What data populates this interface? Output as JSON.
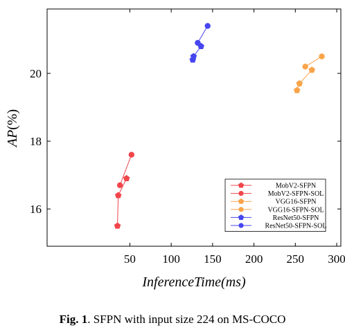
{
  "chart_data": {
    "type": "line",
    "xlabel": "InferenceTime(ms)",
    "ylabel_italic": "AP",
    "ylabel_unit": "(%)",
    "xlim": [
      -50,
      305
    ],
    "ylim": [
      14.9,
      21.9
    ],
    "xticks": [
      50,
      100,
      150,
      200,
      250,
      300
    ],
    "yticks": [
      16,
      18,
      20
    ],
    "grid": false,
    "legend_position": "bottom-right",
    "series": [
      {
        "name": "MobV2-SFPN",
        "color": "#f0464b",
        "marker": "pentagon",
        "points": [
          [
            35,
            15.5
          ],
          [
            36,
            16.4
          ],
          [
            46,
            16.9
          ]
        ]
      },
      {
        "name": "MobV2-SFPN-SOL",
        "color": "#f0464b",
        "marker": "circle",
        "points": [
          [
            38,
            16.7
          ],
          [
            52,
            17.6
          ]
        ]
      },
      {
        "name": "VGG16-SFPN",
        "color": "#f9a44a",
        "marker": "pentagon",
        "points": [
          [
            252,
            19.5
          ],
          [
            255,
            19.7
          ],
          [
            270,
            20.1
          ]
        ]
      },
      {
        "name": "VGG16-SFPN-SOL",
        "color": "#f9a44a",
        "marker": "circle",
        "points": [
          [
            262,
            20.2
          ],
          [
            282,
            20.5
          ]
        ]
      },
      {
        "name": "ResNet50-SFPN",
        "color": "#4646f0",
        "marker": "pentagon",
        "points": [
          [
            126,
            20.4
          ],
          [
            127,
            20.5
          ],
          [
            136,
            20.8
          ]
        ]
      },
      {
        "name": "ResNet50-SFPN-SOL",
        "color": "#4646f0",
        "marker": "circle",
        "points": [
          [
            132,
            20.9
          ],
          [
            144,
            21.4
          ]
        ]
      }
    ]
  },
  "caption": {
    "label": "Fig. 1",
    "text": ". SFPN with input size 224 on MS-COCO"
  }
}
